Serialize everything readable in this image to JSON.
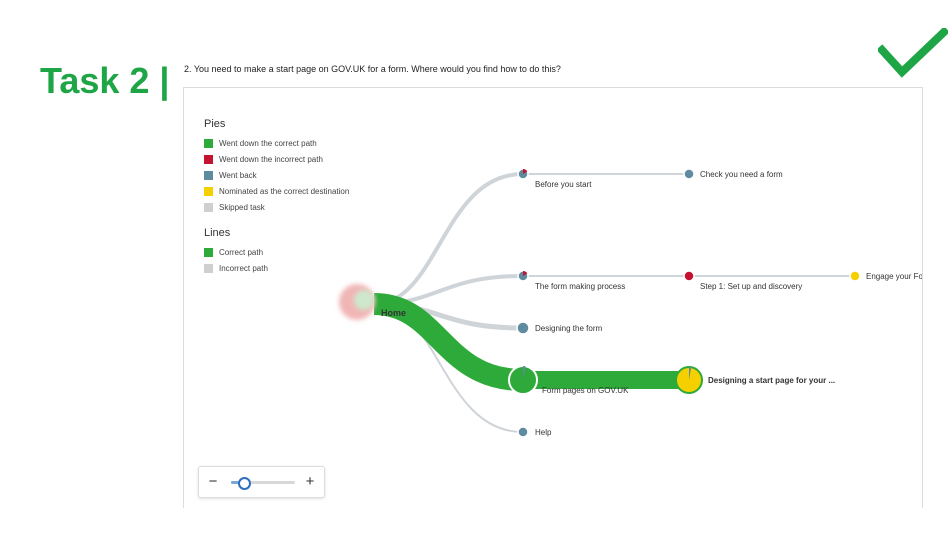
{
  "task": {
    "title": "Task 2 |"
  },
  "question": "2. You need to make a start page on GOV.UK for a form. Where would you find how to do this?",
  "status_icon": "check-mark-icon",
  "colors": {
    "brand_green": "#1ea545",
    "correct": "#2eaa3a",
    "incorrect": "#c41230",
    "went_back": "#5f8ba0",
    "nominated": "#f5d000",
    "skipped": "#cfcfcf"
  },
  "legend": {
    "pies": {
      "title": "Pies",
      "items": [
        {
          "label": "Went down the correct path",
          "color": "#2eaa3a"
        },
        {
          "label": "Went down the incorrect path",
          "color": "#c41230"
        },
        {
          "label": "Went back",
          "color": "#5f8ba0"
        },
        {
          "label": "Nominated as the correct destination",
          "color": "#f5d000"
        },
        {
          "label": "Skipped task",
          "color": "#cfcfcf"
        }
      ]
    },
    "lines": {
      "title": "Lines",
      "items": [
        {
          "label": "Correct path",
          "color": "#2eaa3a"
        },
        {
          "label": "Incorrect path",
          "color": "#cfcfcf"
        }
      ]
    }
  },
  "tree": {
    "home": "Home",
    "nodes": [
      {
        "id": "before-you-start",
        "label": "Before you start"
      },
      {
        "id": "check-you-need-a-form",
        "label": "Check you need a form"
      },
      {
        "id": "form-making-process",
        "label": "The form making process"
      },
      {
        "id": "step-1",
        "label": "Step 1: Set up and discovery"
      },
      {
        "id": "engage",
        "label": "Engage your Fo"
      },
      {
        "id": "designing-the-form",
        "label": "Designing the form"
      },
      {
        "id": "form-pages",
        "label": "Form pages on GOV.UK"
      },
      {
        "id": "designing-start-page",
        "label": "Designing a start page for your ..."
      },
      {
        "id": "help",
        "label": "Help"
      }
    ]
  },
  "zoom": {
    "minus": "−",
    "plus": "+",
    "level": 0.2
  }
}
